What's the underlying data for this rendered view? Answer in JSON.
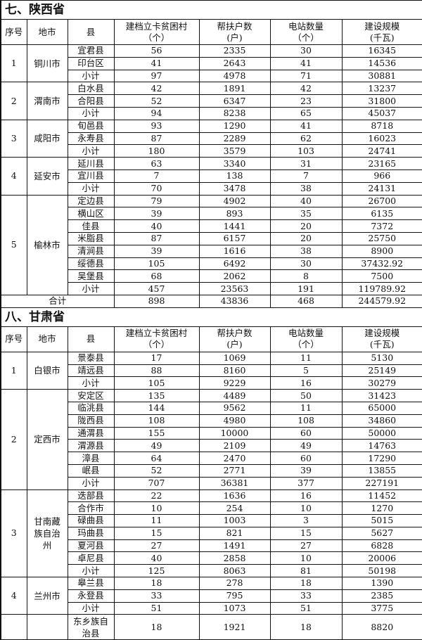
{
  "sections": [
    {
      "title": "七、陕西省",
      "headers": [
        {
          "l1": "序号",
          "l2": ""
        },
        {
          "l1": "地市",
          "l2": ""
        },
        {
          "l1": "县",
          "l2": ""
        },
        {
          "l1": "建档立卡贫困村",
          "l2": "（个）"
        },
        {
          "l1": "帮扶户数",
          "l2": "(户)"
        },
        {
          "l1": "电站数量",
          "l2": "（个）"
        },
        {
          "l1": "建设规模",
          "l2": "(千瓦)"
        }
      ],
      "groups": [
        {
          "no": "1",
          "city": "铜川市",
          "rows": [
            {
              "county": "宜君县",
              "villages": "56",
              "households": "2335",
              "stations": "30",
              "capacity": "16345"
            },
            {
              "county": "印台区",
              "villages": "41",
              "households": "2643",
              "stations": "41",
              "capacity": "14536"
            },
            {
              "county": "小计",
              "villages": "97",
              "households": "4978",
              "stations": "71",
              "capacity": "30881"
            }
          ]
        },
        {
          "no": "2",
          "city": "渭南市",
          "rows": [
            {
              "county": "白水县",
              "villages": "42",
              "households": "1891",
              "stations": "42",
              "capacity": "13237"
            },
            {
              "county": "合阳县",
              "villages": "52",
              "households": "6347",
              "stations": "23",
              "capacity": "31800"
            },
            {
              "county": "小计",
              "villages": "94",
              "households": "8238",
              "stations": "65",
              "capacity": "45037"
            }
          ]
        },
        {
          "no": "3",
          "city": "咸阳市",
          "rows": [
            {
              "county": "旬邑县",
              "villages": "93",
              "households": "1290",
              "stations": "41",
              "capacity": "8718"
            },
            {
              "county": "永寿县",
              "villages": "87",
              "households": "2289",
              "stations": "62",
              "capacity": "16023"
            },
            {
              "county": "小计",
              "villages": "180",
              "households": "3579",
              "stations": "103",
              "capacity": "24741"
            }
          ]
        },
        {
          "no": "4",
          "city": "延安市",
          "rows": [
            {
              "county": "延川县",
              "villages": "63",
              "households": "3340",
              "stations": "31",
              "capacity": "23165"
            },
            {
              "county": "宜川县",
              "villages": "7",
              "households": "138",
              "stations": "7",
              "capacity": "966"
            },
            {
              "county": "小计",
              "villages": "70",
              "households": "3478",
              "stations": "38",
              "capacity": "24131"
            }
          ]
        },
        {
          "no": "5",
          "city": "榆林市",
          "rows": [
            {
              "county": "定边县",
              "villages": "79",
              "households": "4902",
              "stations": "40",
              "capacity": "26700"
            },
            {
              "county": "横山区",
              "villages": "39",
              "households": "893",
              "stations": "35",
              "capacity": "6135"
            },
            {
              "county": "佳县",
              "villages": "40",
              "households": "1441",
              "stations": "20",
              "capacity": "7372"
            },
            {
              "county": "米脂县",
              "villages": "87",
              "households": "6157",
              "stations": "20",
              "capacity": "25750"
            },
            {
              "county": "清涧县",
              "villages": "39",
              "households": "1616",
              "stations": "38",
              "capacity": "8900"
            },
            {
              "county": "绥德县",
              "villages": "105",
              "households": "6492",
              "stations": "30",
              "capacity": "37432.92"
            },
            {
              "county": "吴堡县",
              "villages": "68",
              "households": "2062",
              "stations": "8",
              "capacity": "7500"
            },
            {
              "county": "小计",
              "villages": "457",
              "households": "23563",
              "stations": "191",
              "capacity": "119789.92"
            }
          ]
        }
      ],
      "total": {
        "label": "合计",
        "villages": "898",
        "households": "43836",
        "stations": "468",
        "capacity": "244579.92"
      }
    },
    {
      "title": "八、甘肃省",
      "headers": [
        {
          "l1": "序号",
          "l2": ""
        },
        {
          "l1": "地市",
          "l2": ""
        },
        {
          "l1": "县",
          "l2": ""
        },
        {
          "l1": "建档立卡贫困村",
          "l2": "（个）"
        },
        {
          "l1": "帮扶户数",
          "l2": "(户)"
        },
        {
          "l1": "电站数量",
          "l2": "（个）"
        },
        {
          "l1": "建设规模",
          "l2": "(千瓦)"
        }
      ],
      "groups": [
        {
          "no": "1",
          "city": "白银市",
          "rows": [
            {
              "county": "景泰县",
              "villages": "17",
              "households": "1069",
              "stations": "11",
              "capacity": "5130"
            },
            {
              "county": "靖远县",
              "villages": "88",
              "households": "8160",
              "stations": "5",
              "capacity": "25149"
            },
            {
              "county": "小计",
              "villages": "105",
              "households": "9229",
              "stations": "16",
              "capacity": "30279"
            }
          ]
        },
        {
          "no": "2",
          "city": "定西市",
          "rows": [
            {
              "county": "安定区",
              "villages": "135",
              "households": "4489",
              "stations": "50",
              "capacity": "31423"
            },
            {
              "county": "临洮县",
              "villages": "144",
              "households": "9562",
              "stations": "11",
              "capacity": "65000"
            },
            {
              "county": "陇西县",
              "villages": "108",
              "households": "4980",
              "stations": "108",
              "capacity": "34860"
            },
            {
              "county": "通渭县",
              "villages": "155",
              "households": "10000",
              "stations": "60",
              "capacity": "50000"
            },
            {
              "county": "渭源县",
              "villages": "49",
              "households": "2109",
              "stations": "49",
              "capacity": "14763"
            },
            {
              "county": "漳县",
              "villages": "64",
              "households": "2470",
              "stations": "60",
              "capacity": "17290"
            },
            {
              "county": "岷县",
              "villages": "52",
              "households": "2771",
              "stations": "39",
              "capacity": "13855"
            },
            {
              "county": "小计",
              "villages": "707",
              "households": "36381",
              "stations": "377",
              "capacity": "227191"
            }
          ]
        },
        {
          "no": "3",
          "city": "甘南藏族自治州",
          "rows": [
            {
              "county": "迭部县",
              "villages": "22",
              "households": "1636",
              "stations": "16",
              "capacity": "11452"
            },
            {
              "county": "合作市",
              "villages": "10",
              "households": "254",
              "stations": "10",
              "capacity": "1270"
            },
            {
              "county": "碌曲县",
              "villages": "11",
              "households": "1003",
              "stations": "3",
              "capacity": "5015"
            },
            {
              "county": "玛曲县",
              "villages": "15",
              "households": "821",
              "stations": "15",
              "capacity": "5627"
            },
            {
              "county": "夏河县",
              "villages": "27",
              "households": "1491",
              "stations": "27",
              "capacity": "6828"
            },
            {
              "county": "卓尼县",
              "villages": "40",
              "households": "2858",
              "stations": "10",
              "capacity": "20006"
            },
            {
              "county": "小计",
              "villages": "125",
              "households": "8063",
              "stations": "81",
              "capacity": "50198"
            }
          ]
        },
        {
          "no": "4",
          "city": "兰州市",
          "rows": [
            {
              "county": "皋兰县",
              "villages": "18",
              "households": "278",
              "stations": "18",
              "capacity": "1390"
            },
            {
              "county": "永登县",
              "villages": "33",
              "households": "795",
              "stations": "33",
              "capacity": "2385"
            },
            {
              "county": "小计",
              "villages": "51",
              "households": "1073",
              "stations": "51",
              "capacity": "3775"
            }
          ]
        },
        {
          "no": "",
          "city": "",
          "rows": [
            {
              "county": "东乡族自治县",
              "villages": "18",
              "households": "1921",
              "stations": "18",
              "capacity": "8820"
            }
          ]
        }
      ]
    }
  ]
}
